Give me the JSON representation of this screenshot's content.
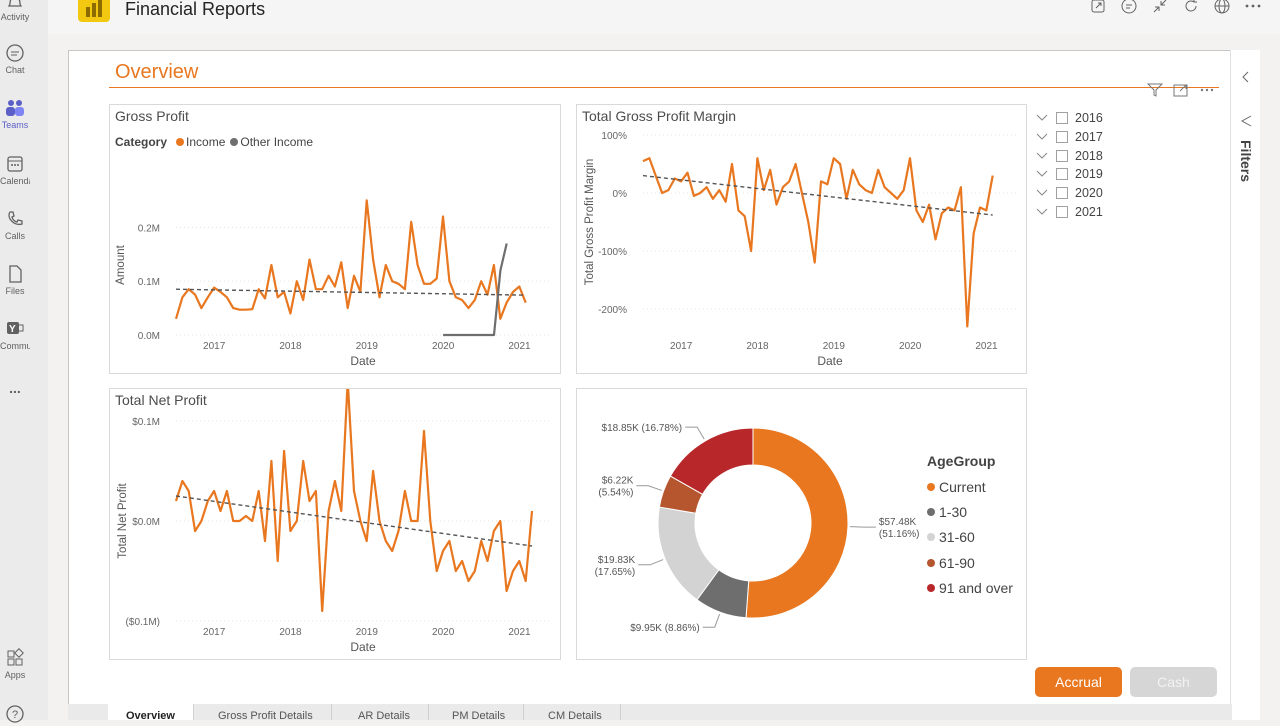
{
  "teams_rail": {
    "items": [
      {
        "label": "Activity",
        "icon": "bell-icon"
      },
      {
        "label": "Chat",
        "icon": "chat-icon"
      },
      {
        "label": "Teams",
        "icon": "teams-icon"
      },
      {
        "label": "Calendar",
        "icon": "calendar-icon"
      },
      {
        "label": "Calls",
        "icon": "phone-icon"
      },
      {
        "label": "Files",
        "icon": "file-icon"
      },
      {
        "label": "Communities",
        "icon": "yammer-icon"
      },
      {
        "label": "...",
        "icon": "more-icon"
      },
      {
        "label": "Apps",
        "icon": "apps-icon"
      },
      {
        "label": "?",
        "icon": "help-icon"
      }
    ]
  },
  "header": {
    "title": "Financial Reports"
  },
  "page": {
    "title": "Overview"
  },
  "filters_pane": {
    "label": "Filters"
  },
  "year_slicer": {
    "items": [
      "2016",
      "2017",
      "2018",
      "2019",
      "2020",
      "2021"
    ]
  },
  "buttons": {
    "accrual": "Accrual",
    "cash": "Cash"
  },
  "tabs": [
    "Overview",
    "Gross Profit Details",
    "AR Details",
    "PM Details",
    "CM Details"
  ],
  "colors": {
    "accent": "#E8771F",
    "other_income": "#6E6E6E",
    "trend": "#555555"
  },
  "chart_data": [
    {
      "type": "line",
      "title": "Gross Profit",
      "legend_title": "Category",
      "xlabel": "Date",
      "ylabel": "Amount",
      "x_ticks": [
        "2017",
        "2018",
        "2019",
        "2020",
        "2021"
      ],
      "y_ticks": [
        "0.0M",
        "0.1M",
        "0.2M"
      ],
      "ylim": [
        0,
        0.26
      ],
      "x_range": [
        2016.5,
        2021.4
      ],
      "series": [
        {
          "name": "Income",
          "color": "#E8771F",
          "x_start": 2016.5,
          "x_step": 0.0833,
          "values": [
            0.03,
            0.07,
            0.085,
            0.075,
            0.05,
            0.07,
            0.088,
            0.08,
            0.07,
            0.05,
            0.047,
            0.047,
            0.048,
            0.085,
            0.068,
            0.13,
            0.07,
            0.08,
            0.04,
            0.1,
            0.065,
            0.14,
            0.085,
            0.085,
            0.11,
            0.09,
            0.135,
            0.05,
            0.11,
            0.08,
            0.25,
            0.14,
            0.07,
            0.13,
            0.1,
            0.095,
            0.085,
            0.21,
            0.13,
            0.095,
            0.095,
            0.105,
            0.22,
            0.1,
            0.07,
            0.065,
            0.05,
            0.065,
            0.1,
            0.075,
            0.13,
            0.03,
            0.06,
            0.08,
            0.09,
            0.06
          ]
        },
        {
          "name": "Other Income",
          "color": "#6E6E6E",
          "x_start": 2020.0,
          "x_step": 0.0833,
          "values": [
            0,
            0,
            0,
            0,
            0,
            0,
            0,
            0,
            0,
            0.12,
            0.17
          ]
        }
      ],
      "trend": {
        "start": 0.085,
        "end": 0.074
      }
    },
    {
      "type": "line",
      "title": "Total Gross Profit Margin",
      "xlabel": "Date",
      "ylabel": "Total Gross Profit Margin",
      "x_ticks": [
        "2017",
        "2018",
        "2019",
        "2020",
        "2021"
      ],
      "y_ticks": [
        "100%",
        "0%",
        "-100%",
        "-200%"
      ],
      "ylim": [
        -200,
        100
      ],
      "x_range": [
        2016.5,
        2021.4
      ],
      "series": [
        {
          "name": "Total Gross Profit Margin",
          "color": "#E8771F",
          "x_start": 2016.5,
          "x_step": 0.0833,
          "values": [
            55,
            60,
            30,
            0,
            5,
            25,
            20,
            35,
            -5,
            0,
            10,
            -10,
            5,
            -15,
            50,
            -30,
            -40,
            -100,
            60,
            5,
            40,
            -20,
            10,
            20,
            50,
            0,
            -50,
            -120,
            20,
            15,
            60,
            50,
            -10,
            40,
            15,
            5,
            0,
            40,
            10,
            0,
            -10,
            5,
            60,
            -30,
            -50,
            -20,
            -80,
            -35,
            -25,
            -30,
            10,
            -230,
            -70,
            -25,
            -30,
            30
          ]
        }
      ],
      "trend": {
        "start": 30,
        "end": -38
      }
    },
    {
      "type": "line",
      "title": "Total Net Profit",
      "xlabel": "Date",
      "ylabel": "Total Net Profit",
      "x_ticks": [
        "2017",
        "2018",
        "2019",
        "2020",
        "2021"
      ],
      "y_ticks": [
        "($0.1M)",
        "$0.0M",
        "$0.1M"
      ],
      "ylim": [
        -0.1,
        0.1
      ],
      "x_range": [
        2016.5,
        2021.4
      ],
      "series": [
        {
          "name": "Total Net Profit",
          "color": "#E8771F",
          "x_start": 2016.5,
          "x_step": 0.0833,
          "values": [
            0.02,
            0.04,
            0.03,
            -0.01,
            0.0,
            0.02,
            0.03,
            0.01,
            0.03,
            0.0,
            0.0,
            0.005,
            0.0,
            0.03,
            -0.02,
            0.06,
            -0.04,
            0.07,
            -0.01,
            0.0,
            0.06,
            0.02,
            0.03,
            -0.09,
            0.01,
            0.04,
            0.01,
            0.14,
            0.03,
            0.0,
            -0.02,
            0.05,
            0.0,
            -0.02,
            -0.03,
            -0.01,
            0.03,
            0.0,
            0.0,
            0.09,
            0.0,
            -0.05,
            -0.03,
            -0.02,
            -0.05,
            -0.04,
            -0.06,
            -0.05,
            -0.02,
            -0.04,
            -0.01,
            0.0,
            -0.07,
            -0.05,
            -0.04,
            -0.06,
            0.01
          ]
        }
      ],
      "trend": {
        "start": 0.025,
        "end": -0.025
      }
    },
    {
      "type": "pie",
      "subtype": "donut",
      "legend_title": "AgeGroup",
      "categories": [
        "Current",
        "1-30",
        "31-60",
        "61-90",
        "91 and over"
      ],
      "values": [
        57.48,
        9.95,
        19.83,
        6.22,
        18.85
      ],
      "percents": [
        51.16,
        8.86,
        17.65,
        5.54,
        16.78
      ],
      "value_labels": [
        "$57.48K",
        "$9.95K",
        "$19.83K",
        "$6.22K",
        "$18.85K"
      ],
      "percent_labels": [
        "(51.16%)",
        "(8.86%)",
        "(17.65%)",
        "(5.54%)",
        "(16.78%)"
      ],
      "colors": [
        "#E8771F",
        "#6E6E6E",
        "#D3D3D3",
        "#B5562E",
        "#B8282B"
      ]
    }
  ]
}
